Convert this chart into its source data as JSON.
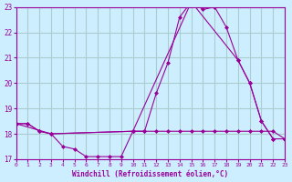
{
  "background_color": "#cceeff",
  "grid_color": "#aacccc",
  "line_color": "#990099",
  "marker_color": "#990099",
  "xlabel": "Windchill (Refroidissement éolien,°C)",
  "xlim": [
    0,
    23
  ],
  "ylim": [
    17,
    23
  ],
  "yticks": [
    17,
    18,
    19,
    20,
    21,
    22,
    23
  ],
  "xticks": [
    0,
    1,
    2,
    3,
    4,
    5,
    6,
    7,
    8,
    9,
    10,
    11,
    12,
    13,
    14,
    15,
    16,
    17,
    18,
    19,
    20,
    21,
    22,
    23
  ],
  "series": [
    {
      "x": [
        0,
        1,
        2,
        3,
        4,
        5,
        6,
        7,
        8,
        9,
        10,
        11,
        12,
        13,
        14,
        15,
        16,
        17,
        18,
        19,
        20,
        21,
        22
      ],
      "y": [
        18.4,
        18.4,
        18.1,
        18.0,
        17.5,
        17.4,
        17.1,
        17.1,
        17.1,
        17.1,
        18.1,
        18.1,
        19.6,
        20.8,
        22.6,
        23.2,
        22.9,
        23.0,
        22.2,
        20.9,
        20.0,
        18.5,
        17.8
      ]
    },
    {
      "x": [
        0,
        1,
        2,
        3,
        10,
        11,
        12,
        13,
        14,
        15,
        16,
        17,
        18,
        19,
        20,
        21,
        22,
        23
      ],
      "y": [
        18.4,
        18.4,
        18.1,
        18.0,
        18.1,
        18.1,
        18.1,
        18.1,
        18.1,
        18.1,
        18.1,
        18.1,
        18.1,
        18.1,
        18.1,
        18.1,
        18.1,
        17.8
      ]
    },
    {
      "x": [
        0,
        3,
        10,
        15,
        19,
        20,
        21,
        22,
        23
      ],
      "y": [
        18.4,
        18.0,
        18.1,
        23.2,
        20.9,
        20.0,
        18.5,
        17.8,
        17.8
      ]
    }
  ]
}
